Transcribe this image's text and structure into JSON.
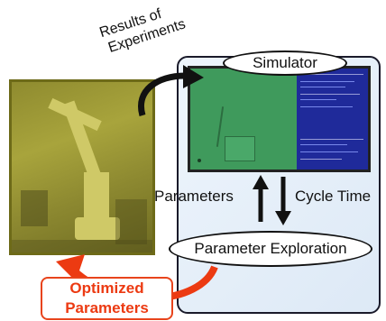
{
  "labels": {
    "results_of_experiments": [
      "Results of",
      "Experiments"
    ],
    "simulator": "Simulator",
    "parameters": "Parameters",
    "cycle_time": "Cycle Time",
    "parameter_exploration": "Parameter Exploration",
    "optimized_parameters": [
      "Optimized",
      "Parameters"
    ]
  },
  "colors": {
    "accent_red": "#ec3a12",
    "simulator_green": "#3f9a5c",
    "simulator_blue": "#1f2a9a",
    "photo_tint": "#a8a43c"
  }
}
